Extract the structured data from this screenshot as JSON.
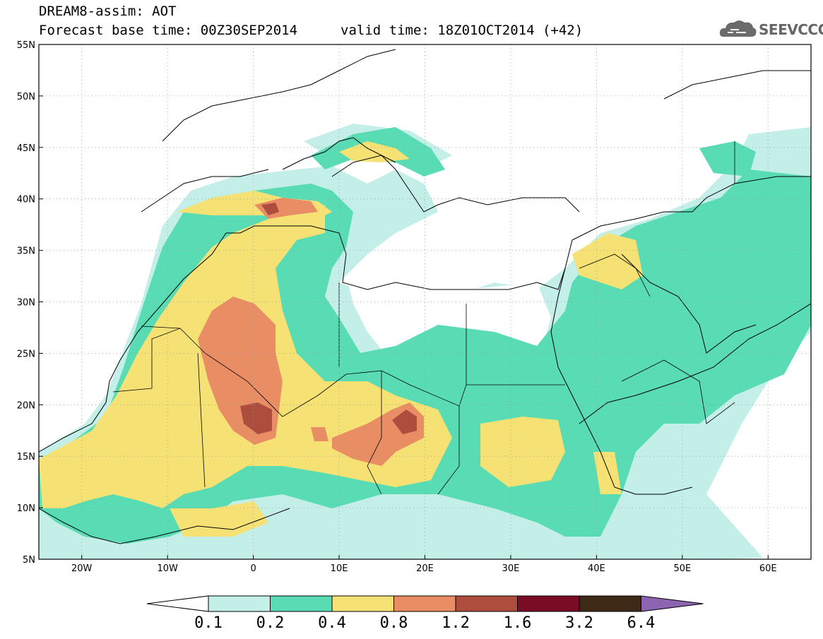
{
  "title": {
    "line1": "DREAM8-assim: AOT",
    "line2": "Forecast base time: 00Z30SEP2014",
    "valid": "valid time: 18Z01OCT2014 (+42)"
  },
  "logo": {
    "text": "SEEVCCC",
    "icon": "cloud-icon"
  },
  "map": {
    "lat_labels": [
      "55N",
      "50N",
      "45N",
      "40N",
      "35N",
      "30N",
      "25N",
      "20N",
      "15N",
      "10N",
      "5N"
    ],
    "lon_labels": [
      "20W",
      "10W",
      "0",
      "10E",
      "20E",
      "30E",
      "40E",
      "50E",
      "60E"
    ],
    "lon_range": [
      -25,
      65
    ],
    "lat_range": [
      5,
      55
    ],
    "field": "AOT"
  },
  "colorbar": {
    "levels": [
      "0.1",
      "0.2",
      "0.4",
      "0.8",
      "1.2",
      "1.6",
      "3.2",
      "6.4"
    ],
    "colors": [
      "#ffffff",
      "#c4efe9",
      "#59dcb4",
      "#f6e274",
      "#e88d64",
      "#ad4d3e",
      "#7a0c26",
      "#3e2816",
      "#8c64b1"
    ]
  },
  "colors": {
    "lvl1": "#c4efe9",
    "lvl2": "#59dcb4",
    "lvl3": "#f6e274",
    "lvl4": "#e88d64",
    "lvl5": "#ad4d3e",
    "lvl6": "#7a0c26"
  }
}
